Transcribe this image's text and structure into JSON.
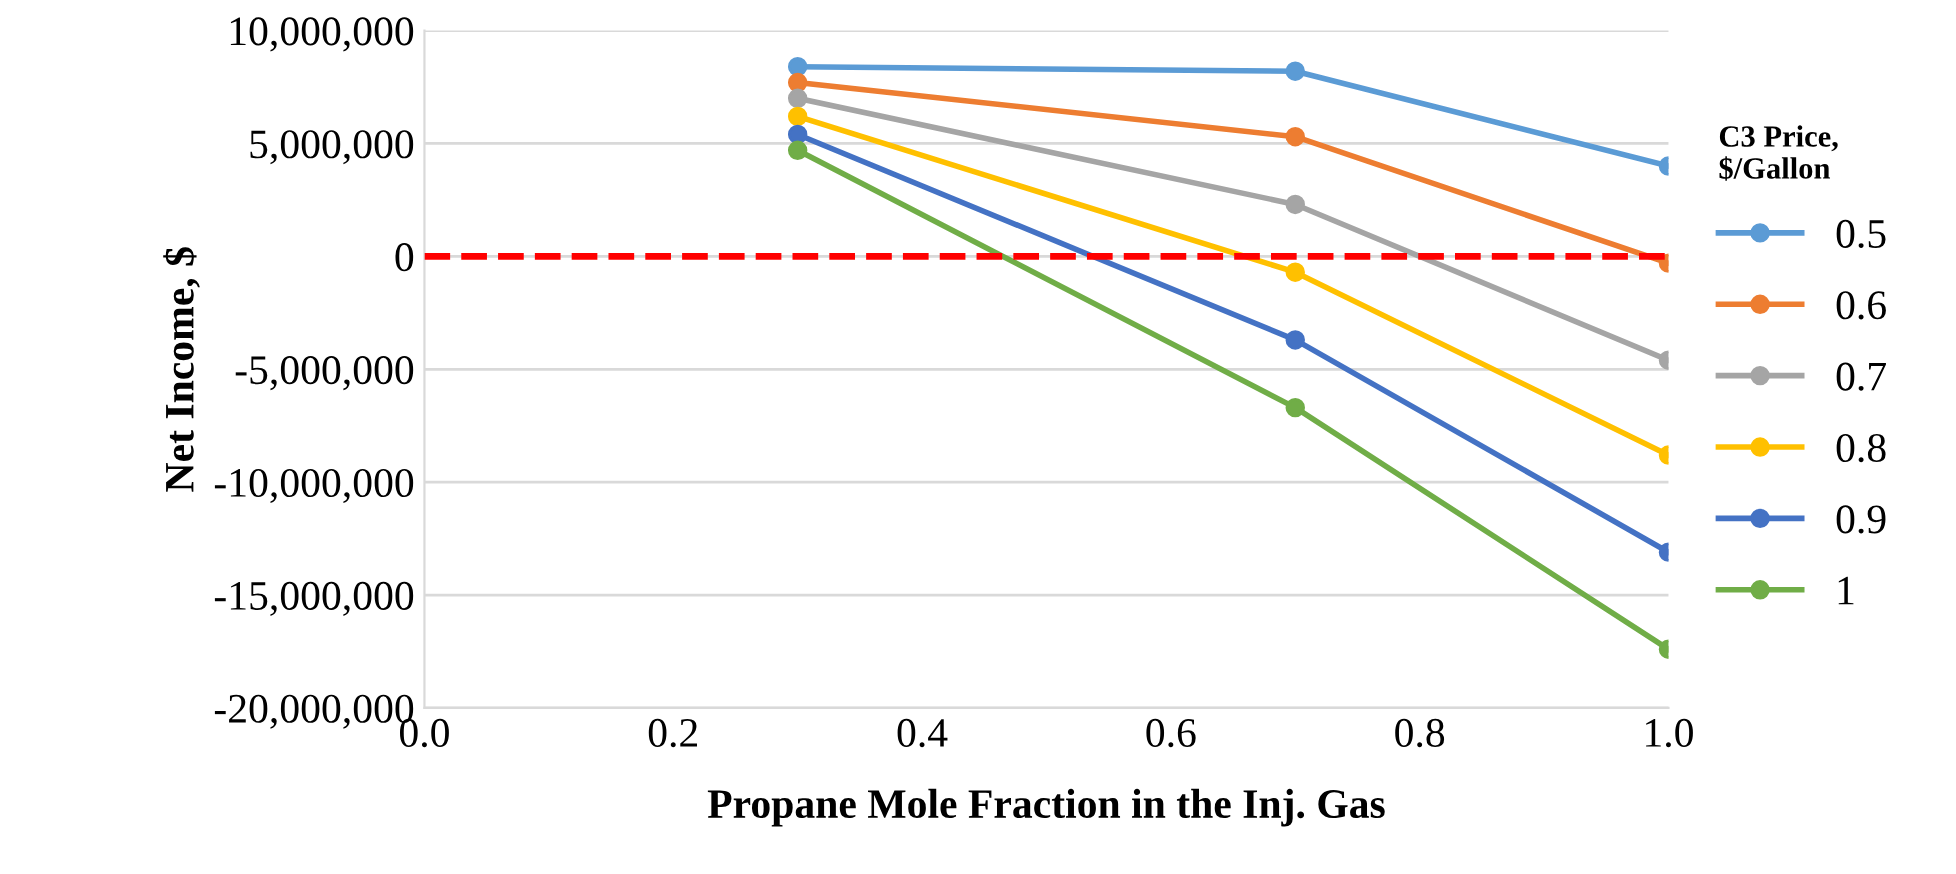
{
  "chart_data": {
    "type": "line",
    "xlabel": "Propane Mole Fraction in the Inj. Gas",
    "ylabel": "Net Income, $",
    "legend_title": "C3 Price,\n$/Gallon",
    "x": [
      0.3,
      0.7,
      1.0
    ],
    "series": [
      {
        "name": "0.5",
        "color": "#5b9bd5",
        "values": [
          8400000,
          8200000,
          4000000
        ]
      },
      {
        "name": "0.6",
        "color": "#ed7d31",
        "values": [
          7700000,
          5300000,
          -300000
        ]
      },
      {
        "name": "0.7",
        "color": "#a5a5a5",
        "values": [
          7000000,
          2300000,
          -4600000
        ]
      },
      {
        "name": "0.8",
        "color": "#ffc000",
        "values": [
          6200000,
          -700000,
          -8800000
        ]
      },
      {
        "name": "0.9",
        "color": "#4472c4",
        "values": [
          5400000,
          -3700000,
          -13100000
        ]
      },
      {
        "name": "1",
        "color": "#70ad47",
        "values": [
          4700000,
          -6700000,
          -17400000
        ]
      }
    ],
    "xlim": [
      0.0,
      1.0
    ],
    "xticks": [
      {
        "value": 0,
        "label": "0.0"
      },
      0.2,
      0.4,
      0.6,
      0.8,
      {
        "value": 1,
        "label": "1.0"
      }
    ],
    "ylim": [
      -20000000,
      10000000
    ],
    "yticks": [
      {
        "value": -20000000,
        "label": "-20,000,000"
      },
      {
        "value": -15000000,
        "label": "-15,000,000"
      },
      {
        "value": -10000000,
        "label": "-10,000,000"
      },
      {
        "value": -5000000,
        "label": "-5,000,000"
      },
      0,
      {
        "value": 5000000,
        "label": "5,000,000"
      },
      {
        "value": 10000000,
        "label": "10,000,000"
      }
    ],
    "ref_lines": [
      {
        "axis": "y",
        "value": 0,
        "color": "#ff0000",
        "line_style": "dashed"
      }
    ],
    "grid": "y",
    "legend": "right",
    "marker": "circle",
    "line_style": "solid"
  }
}
